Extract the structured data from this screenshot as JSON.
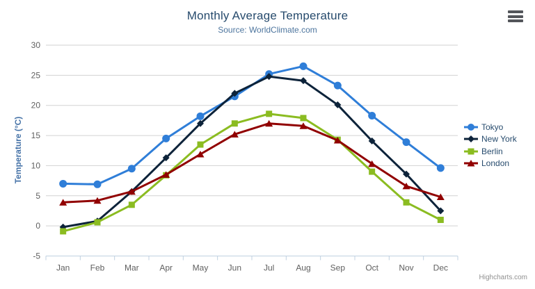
{
  "chart": {
    "export_menu": "export-menu",
    "credits_label": "Highcharts.com"
  },
  "chart_data": {
    "type": "line",
    "title": "Monthly Average Temperature",
    "subtitle": "Source: WorldClimate.com",
    "xlabel": "",
    "ylabel": "Temperature (°C)",
    "categories": [
      "Jan",
      "Feb",
      "Mar",
      "Apr",
      "May",
      "Jun",
      "Jul",
      "Aug",
      "Sep",
      "Oct",
      "Nov",
      "Dec"
    ],
    "yticks": [
      -5,
      0,
      5,
      10,
      15,
      20,
      25,
      30
    ],
    "ylim": [
      -5,
      30
    ],
    "grid": true,
    "legend_position": "right",
    "series": [
      {
        "name": "Tokyo",
        "color": "#2f7ed8",
        "marker": "circle",
        "values": [
          7.0,
          6.9,
          9.5,
          14.5,
          18.2,
          21.5,
          25.2,
          26.5,
          23.3,
          18.3,
          13.9,
          9.6
        ]
      },
      {
        "name": "New York",
        "color": "#0d233a",
        "marker": "diamond",
        "values": [
          -0.2,
          0.8,
          5.7,
          11.3,
          17.0,
          22.0,
          24.8,
          24.1,
          20.1,
          14.1,
          8.6,
          2.5
        ]
      },
      {
        "name": "Berlin",
        "color": "#8bbc21",
        "marker": "square",
        "values": [
          -0.9,
          0.6,
          3.5,
          8.4,
          13.5,
          17.0,
          18.6,
          17.9,
          14.3,
          9.0,
          3.9,
          1.0
        ]
      },
      {
        "name": "London",
        "color": "#910000",
        "marker": "triangle",
        "values": [
          3.9,
          4.2,
          5.7,
          8.5,
          11.9,
          15.2,
          17.0,
          16.6,
          14.2,
          10.3,
          6.6,
          4.8
        ]
      }
    ],
    "axis_line_color": "#c0d0e0",
    "grid_color": "#d2d2d2",
    "label_color": "#606060"
  }
}
